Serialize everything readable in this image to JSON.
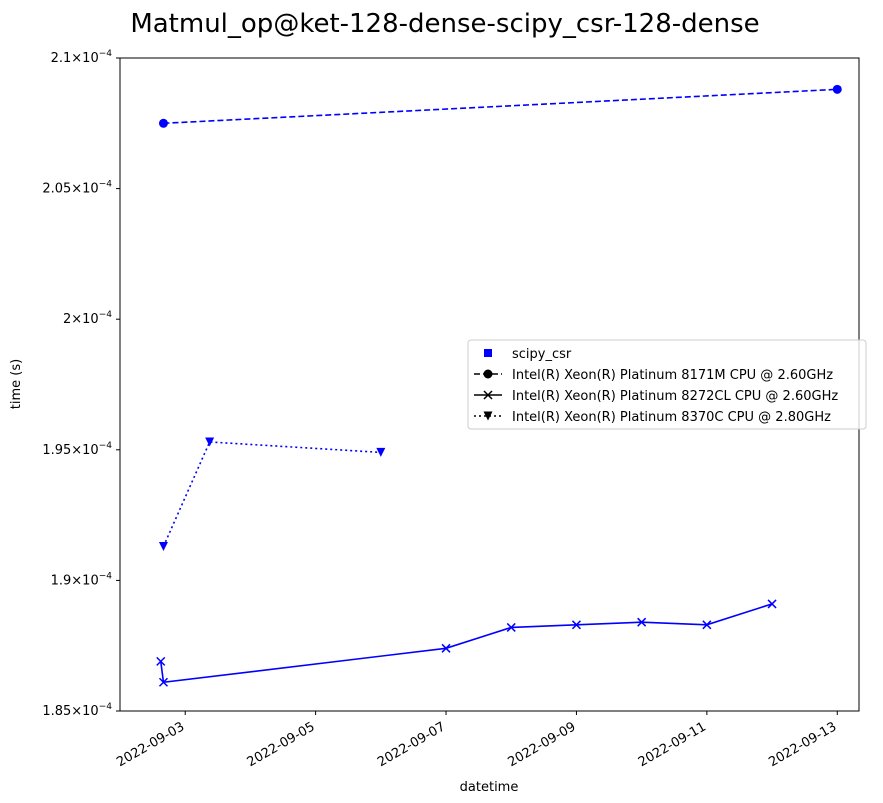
{
  "chart_data": {
    "type": "line",
    "title": "Matmul_op@ket-128-dense-scipy_csr-128-dense",
    "xlabel": "datetime",
    "ylabel": "time (s)",
    "ylim": [
      0.000185,
      0.00021
    ],
    "xlim": [
      "2022-09-02T00:00",
      "2022-09-13T08:00"
    ],
    "yticks": [
      {
        "value": 0.000185,
        "base": "1.85",
        "exp": "-4"
      },
      {
        "value": 0.00019,
        "base": "1.9",
        "exp": "-4"
      },
      {
        "value": 0.000195,
        "base": "1.95",
        "exp": "-4"
      },
      {
        "value": 0.0002,
        "base": "2",
        "exp": "-4"
      },
      {
        "value": 0.000205,
        "base": "2.05",
        "exp": "-4"
      },
      {
        "value": 0.00021,
        "base": "2.1",
        "exp": "-4"
      }
    ],
    "xticks": [
      "2022-09-03",
      "2022-09-05",
      "2022-09-07",
      "2022-09-09",
      "2022-09-11",
      "2022-09-13"
    ],
    "grid": false,
    "legend_position": "center-right",
    "color": "#0000ff",
    "legend": [
      {
        "label": "scipy_csr",
        "marker": "square",
        "line": "none"
      },
      {
        "label": "Intel(R) Xeon(R) Platinum 8171M CPU @ 2.60GHz",
        "marker": "circle",
        "line": "dashed"
      },
      {
        "label": "Intel(R) Xeon(R) Platinum 8272CL CPU @ 2.60GHz",
        "marker": "x",
        "line": "solid"
      },
      {
        "label": "Intel(R) Xeon(R) Platinum 8370C CPU @ 2.80GHz",
        "marker": "triangle-down",
        "line": "dotted"
      }
    ],
    "series": [
      {
        "name": "Intel(R) Xeon(R) Platinum 8171M CPU @ 2.60GHz",
        "marker": "circle",
        "line": "dashed",
        "points": [
          {
            "x": "2022-09-02T16:00",
            "y": 0.0002075
          },
          {
            "x": "2022-09-13T00:00",
            "y": 0.0002088
          }
        ]
      },
      {
        "name": "Intel(R) Xeon(R) Platinum 8272CL CPU @ 2.60GHz",
        "marker": "x",
        "line": "solid",
        "points": [
          {
            "x": "2022-09-02T15:00",
            "y": 0.0001869
          },
          {
            "x": "2022-09-02T16:00",
            "y": 0.0001861
          },
          {
            "x": "2022-09-07T00:00",
            "y": 0.0001874
          },
          {
            "x": "2022-09-08T00:00",
            "y": 0.0001882
          },
          {
            "x": "2022-09-09T00:00",
            "y": 0.0001883
          },
          {
            "x": "2022-09-10T00:00",
            "y": 0.0001884
          },
          {
            "x": "2022-09-11T00:00",
            "y": 0.0001883
          },
          {
            "x": "2022-09-12T00:00",
            "y": 0.0001891
          }
        ]
      },
      {
        "name": "Intel(R) Xeon(R) Platinum 8370C CPU @ 2.80GHz",
        "marker": "triangle-down",
        "line": "dotted",
        "points": [
          {
            "x": "2022-09-02T16:00",
            "y": 0.0001913
          },
          {
            "x": "2022-09-03T09:00",
            "y": 0.0001953
          },
          {
            "x": "2022-09-06T00:00",
            "y": 0.0001949
          }
        ]
      }
    ]
  }
}
